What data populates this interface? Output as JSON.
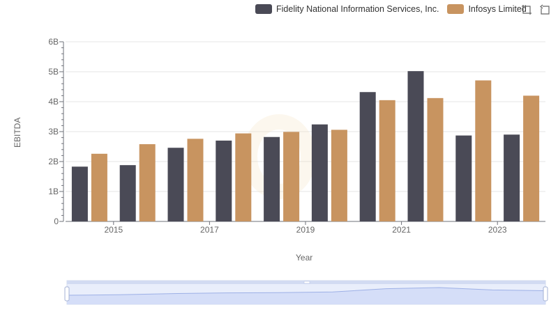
{
  "chart_data": {
    "type": "bar",
    "categories": [
      "2014",
      "2015",
      "2016",
      "2017",
      "2018",
      "2019",
      "2020",
      "2021",
      "2022",
      "2023"
    ],
    "x_tick_labels": [
      "2015",
      "2017",
      "2019",
      "2021",
      "2023"
    ],
    "y_tick_labels": [
      "0",
      "1B",
      "2B",
      "3B",
      "4B",
      "5B",
      "6B"
    ],
    "ylim": [
      0,
      6000000000
    ],
    "xlabel": "Year",
    "ylabel": "EBITDA",
    "legend_position": "top-right",
    "grid": true,
    "series": [
      {
        "name": "Fidelity National Information Services, Inc.",
        "color": "#4a4a56",
        "values": [
          1830000000,
          1880000000,
          2460000000,
          2700000000,
          2820000000,
          3240000000,
          4320000000,
          5020000000,
          2870000000,
          2900000000
        ]
      },
      {
        "name": "Infosys Limited",
        "color": "#c89460",
        "values": [
          2260000000,
          2580000000,
          2760000000,
          2940000000,
          2990000000,
          3060000000,
          4050000000,
          4120000000,
          4710000000,
          4200000000
        ]
      }
    ]
  },
  "legend": {
    "items": [
      {
        "label": "Fidelity National Information Services, Inc.",
        "color": "#4a4a56"
      },
      {
        "label": "Infosys Limited",
        "color": "#c89460"
      }
    ]
  },
  "toolbox": {
    "icons": [
      "zoom-icon",
      "zoom-reset-icon"
    ]
  },
  "datazoom": {
    "range_start_percent": 0,
    "range_end_percent": 100
  }
}
